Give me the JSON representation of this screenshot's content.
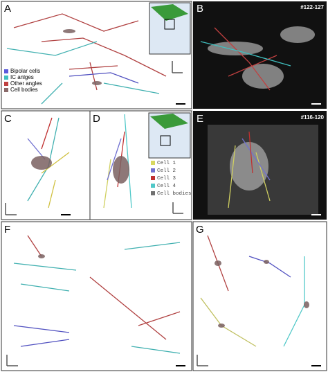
{
  "panels": [
    "A",
    "B",
    "C",
    "D",
    "E",
    "F",
    "G"
  ],
  "panel_b_id": "#122-127",
  "panel_e_id": "#116-120",
  "legend_a": [
    "Bipolar cells",
    "IC anlges",
    "Other angles",
    "Cell bodies"
  ],
  "legend_d": [
    "Cell 1",
    "Cell 2",
    "Cell 3",
    "Cell 4",
    "Cell bodies"
  ]
}
